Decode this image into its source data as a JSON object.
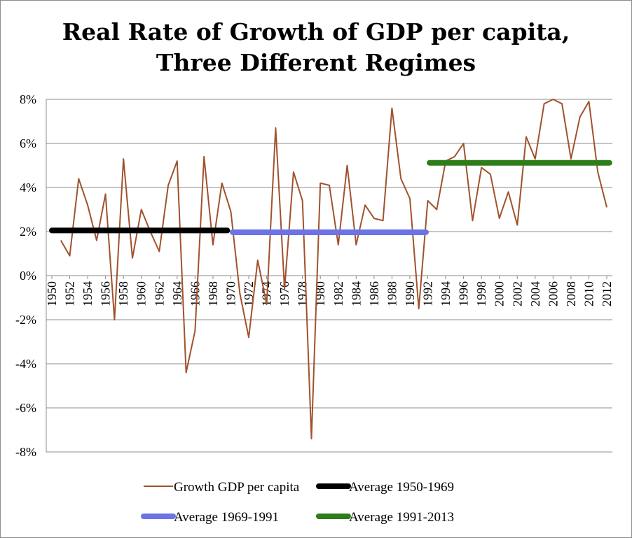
{
  "chart_data": {
    "type": "line",
    "title_line1": "Real Rate of Growth of GDP per capita,",
    "title_line2": "Three Different Regimes",
    "ylim": [
      -8,
      8
    ],
    "yticks": [
      8,
      6,
      4,
      2,
      0,
      -2,
      -4,
      -6,
      -8
    ],
    "ytick_labels": [
      "8%",
      "6%",
      "4%",
      "2%",
      "0%",
      "-2%",
      "-4%",
      "-6%",
      "-8%"
    ],
    "xlim": [
      1950,
      2012
    ],
    "xtick_labels": [
      "1950",
      "1952",
      "1954",
      "1956",
      "1958",
      "1960",
      "1962",
      "1964",
      "1966",
      "1968",
      "1970",
      "1972",
      "1974",
      "1976",
      "1978",
      "1980",
      "1982",
      "1984",
      "1986",
      "1988",
      "1990",
      "1992",
      "1994",
      "1996",
      "1998",
      "2000",
      "2002",
      "2004",
      "2006",
      "2008",
      "2010",
      "2012"
    ],
    "grid": true,
    "legend_placement": "bottom",
    "series": [
      {
        "name": "Growth GDP per capita",
        "color": "#a0522d",
        "x": [
          1951,
          1952,
          1953,
          1954,
          1955,
          1956,
          1957,
          1958,
          1959,
          1960,
          1961,
          1962,
          1963,
          1964,
          1965,
          1966,
          1967,
          1968,
          1969,
          1970,
          1971,
          1972,
          1973,
          1974,
          1975,
          1976,
          1977,
          1978,
          1979,
          1980,
          1981,
          1982,
          1983,
          1984,
          1985,
          1986,
          1987,
          1988,
          1989,
          1990,
          1991,
          1992,
          1993,
          1994,
          1995,
          1996,
          1997,
          1998,
          1999,
          2000,
          2001,
          2002,
          2003,
          2004,
          2005,
          2006,
          2007,
          2008,
          2009,
          2010,
          2011,
          2012
        ],
        "y": [
          1.6,
          0.9,
          4.4,
          3.2,
          1.6,
          3.7,
          -2.0,
          5.3,
          0.8,
          3.0,
          2.0,
          1.1,
          4.1,
          5.2,
          -4.4,
          -2.5,
          5.4,
          1.4,
          4.2,
          2.9,
          -0.8,
          -2.8,
          0.7,
          -1.3,
          6.7,
          -0.6,
          4.7,
          3.4,
          -7.4,
          4.2,
          4.1,
          1.4,
          5.0,
          1.4,
          3.2,
          2.6,
          2.5,
          7.6,
          4.4,
          3.5,
          -1.5,
          3.4,
          3.0,
          5.2,
          5.4,
          6.0,
          2.5,
          4.9,
          4.6,
          2.6,
          3.8,
          2.3,
          6.3,
          5.3,
          7.8,
          8.0,
          7.8,
          5.3,
          7.2,
          7.9,
          4.7,
          3.1
        ]
      },
      {
        "name": "Average 1950-1969",
        "color": "#000000",
        "x": [
          1950,
          1969.6
        ],
        "y": [
          2.05,
          2.05
        ]
      },
      {
        "name": "Average 1969-1991",
        "color": "#6b73e6",
        "x": [
          1970.2,
          1991.8
        ],
        "y": [
          1.97,
          1.97
        ]
      },
      {
        "name": "Average 1991-2013",
        "color": "#2e7d1a",
        "x": [
          1992.2,
          2012.3
        ],
        "y": [
          5.12,
          5.12
        ]
      }
    ]
  }
}
